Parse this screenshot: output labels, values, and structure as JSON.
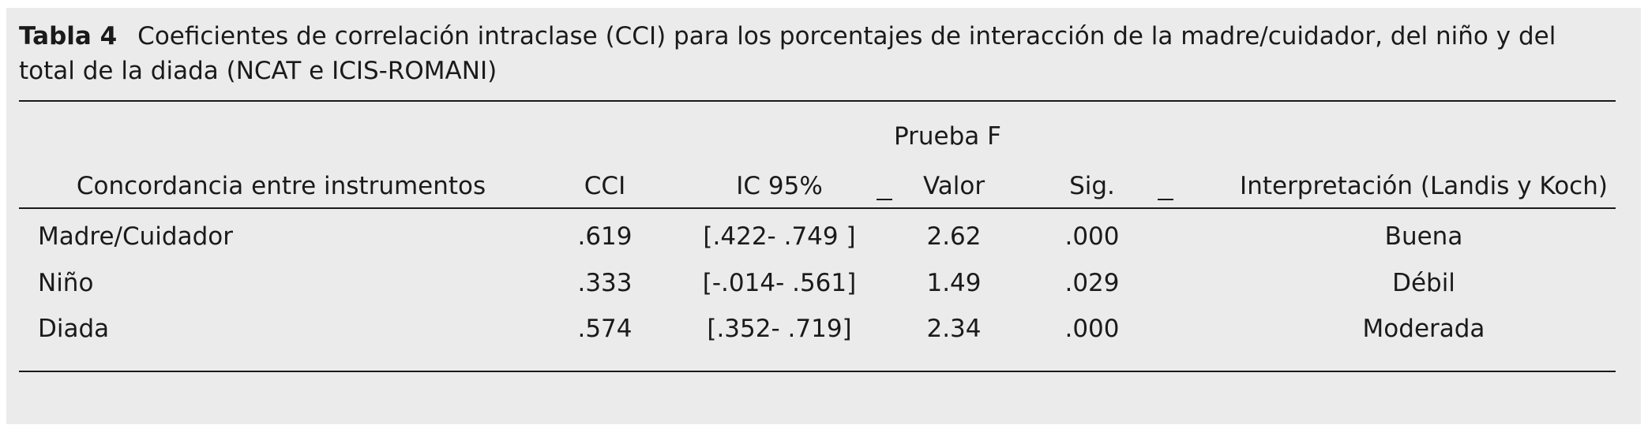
{
  "caption": {
    "label": "Tabla 4",
    "line1": "Coeficientes de correlación intraclase (CCI) para los porcentajes de interacción de la madre/cuidador, del niño y del",
    "line2": "total de la diada (NCAT e ICIS-ROMANI)"
  },
  "header": {
    "group": "Prueba F",
    "columns": [
      "Concordancia entre instrumentos",
      "CCI",
      "IC 95%",
      "Valor",
      "Sig.",
      "Interpretación (Landis y Koch)"
    ]
  },
  "rows": [
    {
      "name": "Madre/Cuidador",
      "cci": ".619",
      "ic": "[.422- .749 ]",
      "valor": "2.62",
      "sig": ".000",
      "interp": "Buena"
    },
    {
      "name": "Niño",
      "cci": ".333",
      "ic": "[-.014- .561]",
      "valor": "1.49",
      "sig": ".029",
      "interp": "Débil"
    },
    {
      "name": "Diada",
      "cci": ".574",
      "ic": "[.352- .719]",
      "valor": "2.34",
      "sig": ".000",
      "interp": "Moderada"
    }
  ]
}
